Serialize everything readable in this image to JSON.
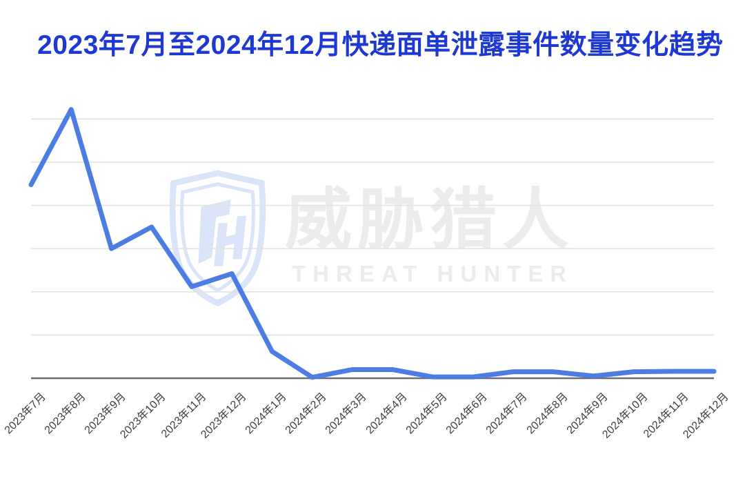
{
  "title": {
    "text": "2023年7月至2024年12月快递面单泄露事件数量变化趋势",
    "color": "#1e38d2"
  },
  "watermark": {
    "logo_icon": "threat-hunter-shield-logo",
    "cn_text": "威胁猎人",
    "en_text": "THREAT HUNTER",
    "logo_color": "#d9e4f8",
    "text_color": "#ececec"
  },
  "chart_data": {
    "type": "line",
    "title": "2023年7月至2024年12月快递面单泄露事件数量变化趋势",
    "xlabel": "",
    "ylabel": "",
    "categories": [
      "2023年7月",
      "2023年8月",
      "2023年9月",
      "2023年10月",
      "2023年11月",
      "2023年12月",
      "2024年1月",
      "2024年2月",
      "2024年3月",
      "2024年4月",
      "2024年5月",
      "2024年6月",
      "2024年7月",
      "2024年8月",
      "2024年9月",
      "2024年10月",
      "2024年11月",
      "2024年12月"
    ],
    "values": [
      4.48,
      6.22,
      3.0,
      3.5,
      2.12,
      2.42,
      0.62,
      0.02,
      0.2,
      0.2,
      0.03,
      0.03,
      0.15,
      0.15,
      0.05,
      0.15,
      0.16,
      0.16
    ],
    "value_unit": "relative gridline units (no y-axis tick labels visible; 1.0 = one gridline interval)",
    "ylim": [
      0,
      7
    ],
    "gridline_count": 6,
    "x_tick_rotation_deg": 45,
    "grid": true,
    "legend": false,
    "line_color": "#4d7ce2",
    "grid_color": "#e2e2e2",
    "axis_color": "#6e6e6e",
    "tick_label_color": "#3e3e3e"
  }
}
